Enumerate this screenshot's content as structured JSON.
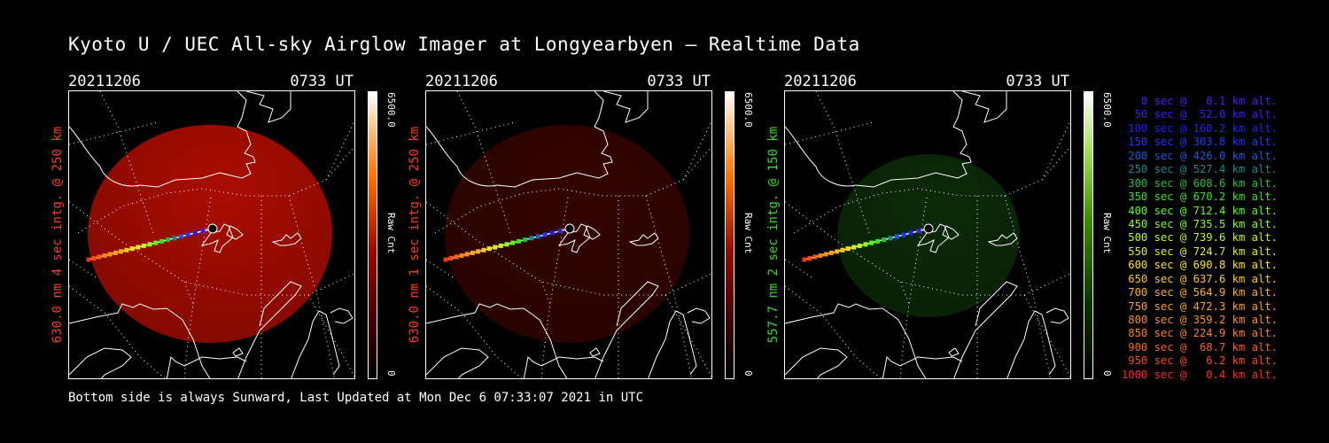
{
  "title": "Kyoto U / UEC All-sky Airglow Imager at Longyearbyen — Realtime Data",
  "footer": "Bottom side is always Sunward, Last Updated at Mon Dec  6 07:33:07 2021 in UTC",
  "panels": [
    {
      "date": "20211206",
      "time": "0733 UT",
      "side_label": "630.0 nm 4 sec intg. @ 250 km",
      "label_color": "#ff3a1a",
      "cbar_max": "6500.0",
      "cbar_min": "0",
      "cbar_unit": "Raw Cnt",
      "emission": "red",
      "brightness": 1.0
    },
    {
      "date": "20211206",
      "time": "0733 UT",
      "side_label": "630.0 nm 1 sec intg. @ 250 km",
      "label_color": "#ff3a1a",
      "cbar_max": "6500.0",
      "cbar_min": "0",
      "cbar_unit": "Raw Cnt",
      "emission": "red",
      "brightness": 0.3
    },
    {
      "date": "20211206",
      "time": "0733 UT",
      "side_label": "557.7 nm 2 sec intg. @ 150 km",
      "label_color": "#33dd22",
      "cbar_max": "6500.0",
      "cbar_min": "0",
      "cbar_unit": "Raw Cnt",
      "emission": "green",
      "brightness": 0.35
    }
  ],
  "legend": [
    {
      "text": "0 sec @   0.1 km alt.",
      "color": "#4b1aff"
    },
    {
      "text": "50 sec @  52.0 km alt.",
      "color": "#3a1aff"
    },
    {
      "text": "100 sec @ 160.2 km alt.",
      "color": "#1a22ff"
    },
    {
      "text": "150 sec @ 303.8 km alt.",
      "color": "#1a3aff"
    },
    {
      "text": "200 sec @ 426.0 km alt.",
      "color": "#1a5ad8"
    },
    {
      "text": "250 sec @ 527.4 km alt.",
      "color": "#128a90"
    },
    {
      "text": "300 sec @ 608.6 km alt.",
      "color": "#22c040"
    },
    {
      "text": "350 sec @ 670.2 km alt.",
      "color": "#33e81a"
    },
    {
      "text": "400 sec @ 712.4 km alt.",
      "color": "#55ff10"
    },
    {
      "text": "450 sec @ 735.5 km alt.",
      "color": "#8cff10"
    },
    {
      "text": "500 sec @ 739.6 km alt.",
      "color": "#b8ff10"
    },
    {
      "text": "550 sec @ 724.7 km alt.",
      "color": "#e0f010"
    },
    {
      "text": "600 sec @ 690.8 km alt.",
      "color": "#ffe010"
    },
    {
      "text": "650 sec @ 637.6 km alt.",
      "color": "#ffc810"
    },
    {
      "text": "700 sec @ 564.9 km alt.",
      "color": "#ffb010"
    },
    {
      "text": "750 sec @ 472.3 km alt.",
      "color": "#ffa010"
    },
    {
      "text": "800 sec @ 359.2 km alt.",
      "color": "#ff9010"
    },
    {
      "text": "850 sec @ 224.9 km alt.",
      "color": "#ff8010"
    },
    {
      "text": "900 sec @  68.7 km alt.",
      "color": "#ff6010"
    },
    {
      "text": "950 sec @   6.2 km alt.",
      "color": "#ff4a10"
    },
    {
      "text": "1000 sec @   0.4 km alt.",
      "color": "#ff3010"
    }
  ]
}
